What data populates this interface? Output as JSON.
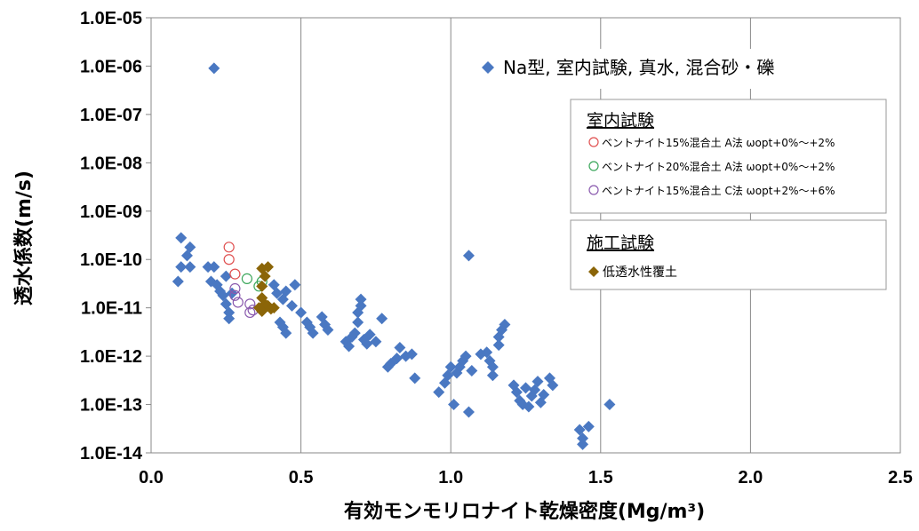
{
  "chart_data": {
    "type": "scatter",
    "xlabel": "有効モンモリロナイト乾燥密度(Mg/m³)",
    "ylabel": "透水係数(m/s)",
    "xlim": [
      0,
      2.5
    ],
    "ylim": [
      1e-14,
      1e-05
    ],
    "yscale": "log",
    "x_ticks": [
      "0.0",
      "0.5",
      "1.0",
      "1.5",
      "2.0",
      "2.5"
    ],
    "y_ticks": [
      "1.0E-05",
      "1.0E-06",
      "1.0E-07",
      "1.0E-08",
      "1.0E-09",
      "1.0E-10",
      "1.0E-11",
      "1.0E-12",
      "1.0E-13",
      "1.0E-14"
    ],
    "grid": "x-only",
    "legend_main": "Na型, 室内試験, 真水, 混合砂・礫",
    "legend_box1": {
      "title": "室内試験",
      "items": [
        "ベントナイト15%混合土 A法 ωopt+0%～+2%",
        "ベントナイト20%混合土 A法 ωopt+0%～+2%",
        "ベントナイト15%混合土 C法 ωopt+2%～+6%"
      ]
    },
    "legend_box2": {
      "title": "施工試験",
      "items": [
        "低透水性覆土"
      ]
    },
    "series": [
      {
        "name": "Na型, 室内試験, 真水, 混合砂・礫",
        "marker": "diamond",
        "color": "#4a78c2",
        "points": [
          [
            0.21,
            9e-07
          ],
          [
            0.1,
            2.8e-10
          ],
          [
            0.09,
            3.5e-11
          ],
          [
            0.1,
            7e-11
          ],
          [
            0.12,
            1.2e-10
          ],
          [
            0.13,
            1.8e-10
          ],
          [
            0.13,
            7e-11
          ],
          [
            0.19,
            7e-11
          ],
          [
            0.21,
            7e-11
          ],
          [
            0.2,
            3.5e-11
          ],
          [
            0.22,
            3e-11
          ],
          [
            0.23,
            2.2e-11
          ],
          [
            0.24,
            1.8e-11
          ],
          [
            0.25,
            1.2e-11
          ],
          [
            0.26,
            8e-12
          ],
          [
            0.26,
            6e-12
          ],
          [
            0.27,
            2e-11
          ],
          [
            0.25,
            4.5e-11
          ],
          [
            0.41,
            3e-11
          ],
          [
            0.42,
            2e-11
          ],
          [
            0.44,
            1.5e-11
          ],
          [
            0.45,
            2.2e-11
          ],
          [
            0.47,
            1.1e-11
          ],
          [
            0.48,
            3e-11
          ],
          [
            0.43,
            5e-12
          ],
          [
            0.44,
            4e-12
          ],
          [
            0.45,
            3e-12
          ],
          [
            0.5,
            8e-12
          ],
          [
            0.52,
            5e-12
          ],
          [
            0.53,
            4e-12
          ],
          [
            0.54,
            3e-12
          ],
          [
            0.57,
            6.5e-12
          ],
          [
            0.58,
            4.5e-12
          ],
          [
            0.59,
            3.5e-12
          ],
          [
            0.65,
            2e-12
          ],
          [
            0.66,
            1.6e-12
          ],
          [
            0.67,
            2.5e-12
          ],
          [
            0.68,
            3e-12
          ],
          [
            0.69,
            5e-12
          ],
          [
            0.69,
            8e-12
          ],
          [
            0.7,
            1.1e-11
          ],
          [
            0.7,
            1.5e-11
          ],
          [
            0.71,
            2.2e-12
          ],
          [
            0.72,
            1.8e-12
          ],
          [
            0.73,
            2.8e-12
          ],
          [
            0.75,
            2e-12
          ],
          [
            0.77,
            6e-12
          ],
          [
            0.79,
            6e-13
          ],
          [
            0.8,
            7e-13
          ],
          [
            0.82,
            9e-13
          ],
          [
            0.83,
            1.5e-12
          ],
          [
            0.85,
            1e-12
          ],
          [
            0.87,
            1.1e-12
          ],
          [
            0.88,
            3.5e-13
          ],
          [
            0.96,
            1.8e-13
          ],
          [
            0.98,
            2.8e-13
          ],
          [
            0.99,
            4e-13
          ],
          [
            1.0,
            6e-13
          ],
          [
            1.01,
            1e-13
          ],
          [
            1.02,
            4.5e-13
          ],
          [
            1.03,
            6e-13
          ],
          [
            1.04,
            8e-13
          ],
          [
            1.05,
            1e-12
          ],
          [
            1.06,
            1.2e-10
          ],
          [
            1.06,
            7e-14
          ],
          [
            1.07,
            5e-13
          ],
          [
            1.1,
            1.1e-12
          ],
          [
            1.14,
            4e-13
          ],
          [
            1.16,
            1.7e-12
          ],
          [
            1.16,
            2.5e-12
          ],
          [
            1.17,
            3.5e-12
          ],
          [
            1.18,
            4.5e-12
          ],
          [
            1.14,
            6e-13
          ],
          [
            1.13,
            8e-13
          ],
          [
            1.12,
            1.2e-12
          ],
          [
            1.21,
            2.5e-13
          ],
          [
            1.22,
            1.8e-13
          ],
          [
            1.23,
            1.2e-13
          ],
          [
            1.24,
            1e-13
          ],
          [
            1.25,
            2.2e-13
          ],
          [
            1.26,
            9e-14
          ],
          [
            1.27,
            1.5e-13
          ],
          [
            1.28,
            2e-13
          ],
          [
            1.29,
            3e-13
          ],
          [
            1.3,
            1.1e-13
          ],
          [
            1.31,
            1.6e-13
          ],
          [
            1.33,
            3.5e-13
          ],
          [
            1.34,
            2.5e-13
          ],
          [
            1.43,
            3e-14
          ],
          [
            1.44,
            2e-14
          ],
          [
            1.44,
            1.5e-14
          ],
          [
            1.46,
            3.5e-14
          ],
          [
            1.53,
            1e-13
          ]
        ]
      },
      {
        "name": "ベントナイト15%混合土 A法 ωopt+0%～+2%",
        "marker": "circle-open",
        "color": "#e05050",
        "points": [
          [
            0.26,
            1.8e-10
          ],
          [
            0.26,
            1e-10
          ],
          [
            0.28,
            5e-11
          ]
        ]
      },
      {
        "name": "ベントナイト20%混合土 A法 ωopt+0%～+2%",
        "marker": "circle-open",
        "color": "#3aa65a",
        "points": [
          [
            0.32,
            4e-11
          ],
          [
            0.36,
            2.8e-11
          ],
          [
            0.37,
            3.5e-11
          ]
        ]
      },
      {
        "name": "ベントナイト15%混合土 C法 ωopt+2%～+6%",
        "marker": "circle-open",
        "color": "#8a5aae",
        "points": [
          [
            0.28,
            2.5e-11
          ],
          [
            0.28,
            1.8e-11
          ],
          [
            0.29,
            1.3e-11
          ],
          [
            0.33,
            1.2e-11
          ],
          [
            0.34,
            9e-12
          ],
          [
            0.33,
            8e-12
          ]
        ]
      },
      {
        "name": "低透水性覆土",
        "marker": "diamond",
        "color": "#8b6508",
        "points": [
          [
            0.37,
            6.5e-11
          ],
          [
            0.38,
            4.5e-11
          ],
          [
            0.39,
            7e-11
          ],
          [
            0.37,
            2.8e-11
          ],
          [
            0.37,
            1.6e-11
          ],
          [
            0.38,
            1.2e-11
          ],
          [
            0.38,
            1e-11
          ],
          [
            0.37,
            8.5e-12
          ],
          [
            0.39,
            1.1e-11
          ],
          [
            0.4,
            9.5e-12
          ],
          [
            0.41,
            1e-11
          ],
          [
            0.36,
            1e-11
          ]
        ]
      }
    ]
  }
}
